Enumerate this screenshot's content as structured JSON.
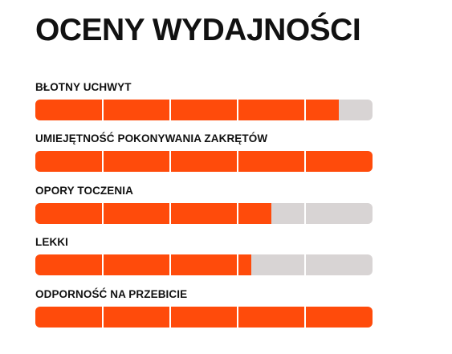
{
  "page": {
    "title": "OCENY WYDAJNOŚCI"
  },
  "colors": {
    "fill": "#ff4b0b",
    "track": "#d8d4d4",
    "text": "#111111"
  },
  "segments_per_bar": 5,
  "ratings": [
    {
      "label": "BŁOTNY UCHWYT",
      "value_fraction": 0.9
    },
    {
      "label": "UMIEJĘTNOŚĆ POKONYWANIA ZAKRĘTÓW",
      "value_fraction": 1.0
    },
    {
      "label": "OPORY TOCZENIA",
      "value_fraction": 0.7
    },
    {
      "label": "LEKKI",
      "value_fraction": 0.64
    },
    {
      "label": "ODPORNOŚĆ NA PRZEBICIE",
      "value_fraction": 1.0
    }
  ]
}
